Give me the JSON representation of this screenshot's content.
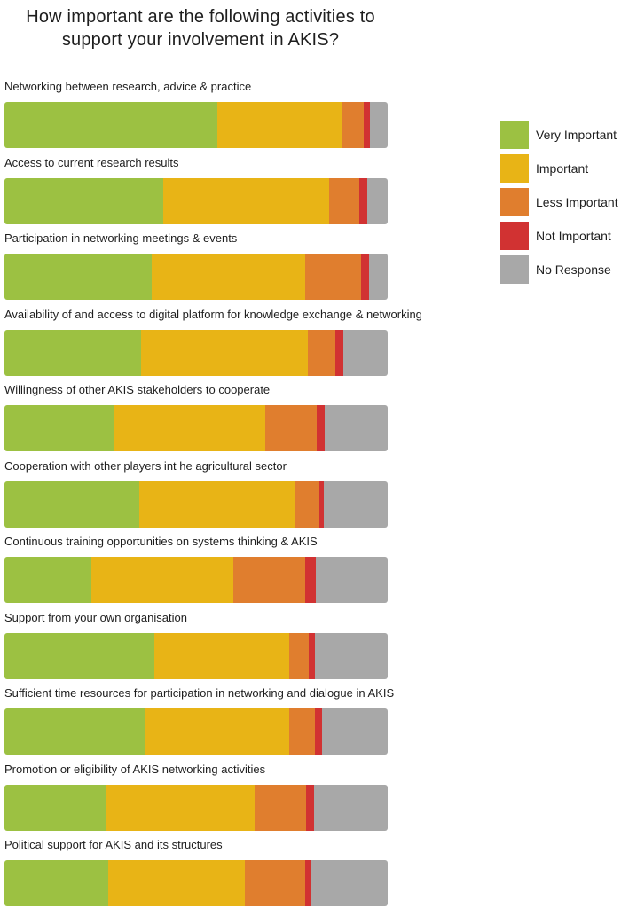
{
  "chart_data": {
    "type": "bar",
    "orientation": "horizontal",
    "stacked": true,
    "normalized": true,
    "title": [
      "How important are the following activities to",
      "support your involvement in AKIS?"
    ],
    "legend_position": "right",
    "series": [
      {
        "name": "Very Important",
        "color": "#9cc142"
      },
      {
        "name": "Important",
        "color": "#e8b416"
      },
      {
        "name": "Less Important",
        "color": "#e07e2e"
      },
      {
        "name": "Not Important",
        "color": "#d13232"
      },
      {
        "name": "No Response",
        "color": "#a8a8a8"
      }
    ],
    "categories": [
      {
        "label": "Networking between research, advice & practice",
        "values": [
          55.6,
          32.4,
          5.8,
          1.6,
          4.6
        ]
      },
      {
        "label": "Access to current research results",
        "values": [
          41.4,
          43.3,
          7.9,
          2.1,
          5.3
        ]
      },
      {
        "label": "Participation in networking meetings & events",
        "values": [
          38.4,
          40.0,
          14.6,
          2.1,
          4.9
        ]
      },
      {
        "label": "Availability of and access to digital platform for knowledge exchange & networking",
        "values": [
          35.6,
          43.5,
          7.2,
          2.1,
          11.6
        ]
      },
      {
        "label": "Willingness of other AKIS stakeholders to cooperate",
        "values": [
          28.5,
          39.6,
          13.4,
          2.1,
          16.4
        ]
      },
      {
        "label": "Cooperation with other players int he agricultural sector",
        "values": [
          35.2,
          40.5,
          6.5,
          1.2,
          16.6
        ]
      },
      {
        "label": "Continuous training opportunities on systems thinking & AKIS",
        "values": [
          22.7,
          37.0,
          18.8,
          2.8,
          18.7
        ]
      },
      {
        "label": "Support from your own organisation",
        "values": [
          39.1,
          35.2,
          5.1,
          1.6,
          19.0
        ]
      },
      {
        "label": "Sufficient time resources for participation in networking and dialogue in AKIS",
        "values": [
          36.8,
          37.5,
          6.7,
          1.8,
          17.2
        ]
      },
      {
        "label": "Promotion or eligibility of AKIS networking activities",
        "values": [
          26.6,
          38.7,
          13.4,
          2.1,
          19.2
        ]
      },
      {
        "label": "Political support for AKIS and its structures",
        "values": [
          27.1,
          35.6,
          15.7,
          1.6,
          20.0
        ]
      }
    ]
  }
}
